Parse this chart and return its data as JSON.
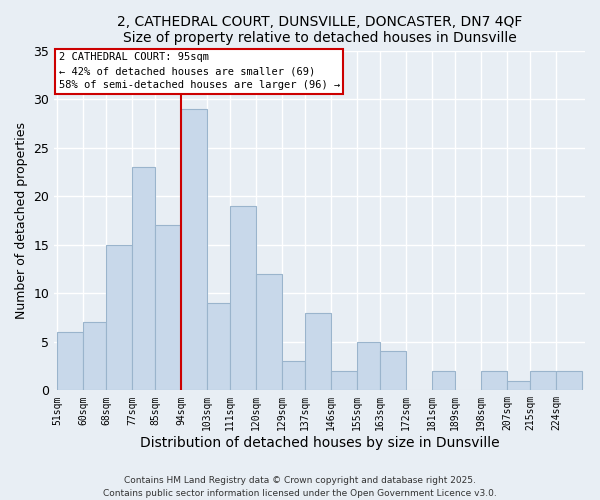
{
  "title": "2, CATHEDRAL COURT, DUNSVILLE, DONCASTER, DN7 4QF",
  "subtitle": "Size of property relative to detached houses in Dunsville",
  "xlabel": "Distribution of detached houses by size in Dunsville",
  "ylabel": "Number of detached properties",
  "bin_left_edges": [
    51,
    60,
    68,
    77,
    85,
    94,
    103,
    111,
    120,
    129,
    137,
    146,
    155,
    163,
    172,
    181,
    189,
    198,
    207,
    215,
    224
  ],
  "bin_labels": [
    "51sqm",
    "60sqm",
    "68sqm",
    "77sqm",
    "85sqm",
    "94sqm",
    "103sqm",
    "111sqm",
    "120sqm",
    "129sqm",
    "137sqm",
    "146sqm",
    "155sqm",
    "163sqm",
    "172sqm",
    "181sqm",
    "189sqm",
    "198sqm",
    "207sqm",
    "215sqm",
    "224sqm"
  ],
  "counts": [
    6,
    7,
    15,
    23,
    17,
    29,
    9,
    19,
    12,
    3,
    8,
    2,
    5,
    4,
    0,
    2,
    0,
    2,
    1,
    2,
    2
  ],
  "bar_color": "#c8d8ea",
  "bar_edge_color": "#9ab4cc",
  "vline_x": 94,
  "vline_color": "#cc0000",
  "annotation_line1": "2 CATHEDRAL COURT: 95sqm",
  "annotation_line2": "← 42% of detached houses are smaller (69)",
  "annotation_line3": "58% of semi-detached houses are larger (96) →",
  "annotation_box_color": "#ffffff",
  "annotation_box_edge": "#cc0000",
  "ylim": [
    0,
    35
  ],
  "yticks": [
    0,
    5,
    10,
    15,
    20,
    25,
    30,
    35
  ],
  "bg_color": "#e8eef4",
  "grid_color": "#ffffff",
  "footer1": "Contains HM Land Registry data © Crown copyright and database right 2025.",
  "footer2": "Contains public sector information licensed under the Open Government Licence v3.0."
}
